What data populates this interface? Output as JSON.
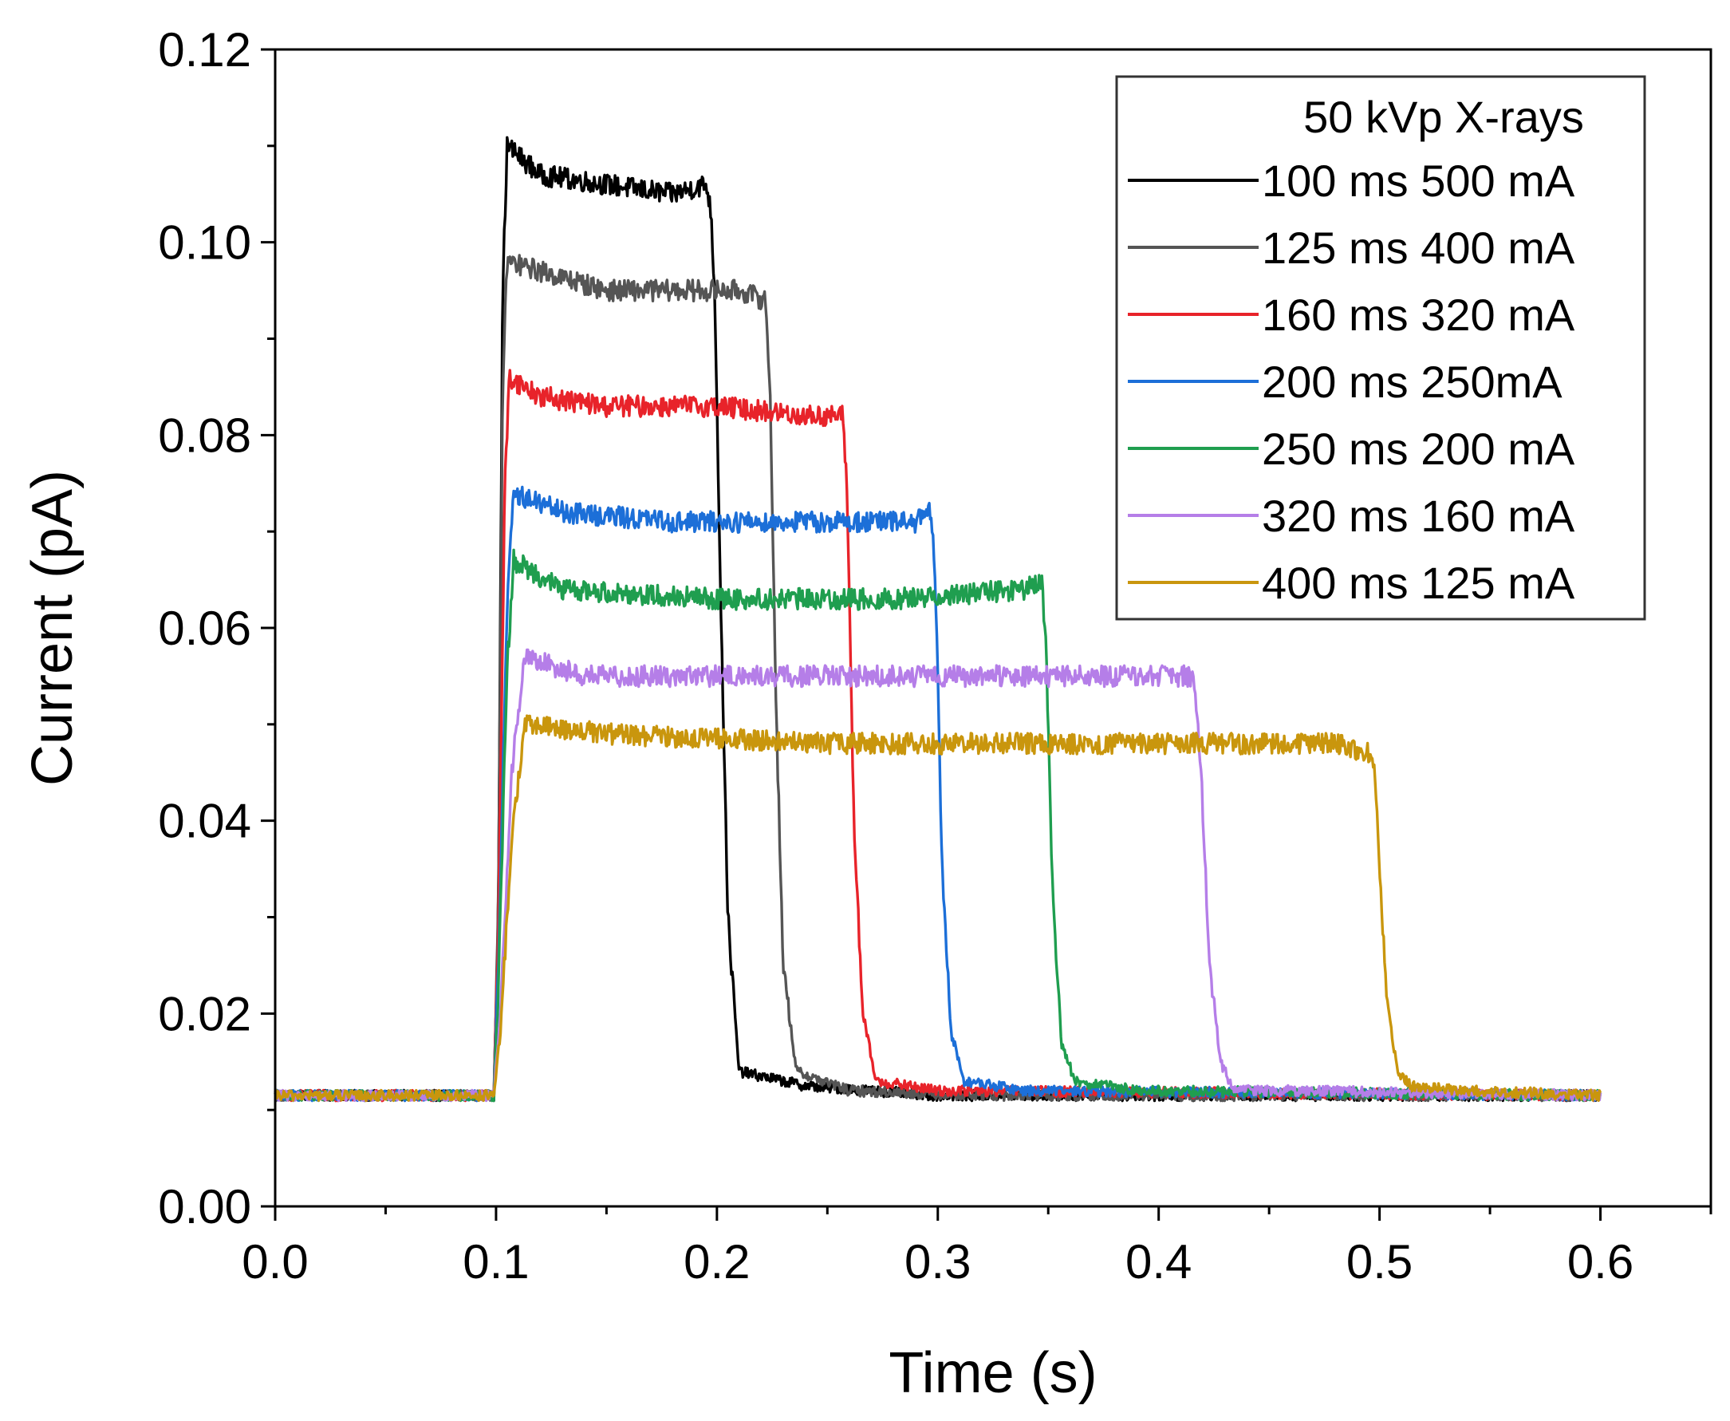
{
  "chart_data": {
    "type": "line",
    "title": "",
    "xlabel": "Time (s)",
    "ylabel": "Current (pA)",
    "xlim": [
      0.0,
      0.65
    ],
    "ylim": [
      0.0,
      0.12
    ],
    "xticks": [
      0.0,
      0.1,
      0.2,
      0.3,
      0.4,
      0.5,
      0.6
    ],
    "xtick_labels": [
      "0.0",
      "0.1",
      "0.2",
      "0.3",
      "0.4",
      "0.5",
      "0.6"
    ],
    "yticks": [
      0.0,
      0.02,
      0.04,
      0.06,
      0.08,
      0.1,
      0.12
    ],
    "ytick_labels": [
      "0.00",
      "0.02",
      "0.04",
      "0.06",
      "0.08",
      "0.10",
      "0.12"
    ],
    "grid": false,
    "legend": {
      "title": "50 kVp X-rays",
      "position": "top-right"
    },
    "series": [
      {
        "name": "100 ms 500 mA",
        "color": "#000000",
        "x": [
          0.0,
          0.099,
          0.101,
          0.103,
          0.105,
          0.12,
          0.15,
          0.18,
          0.195,
          0.197,
          0.199,
          0.202,
          0.205,
          0.21,
          0.24,
          0.3,
          0.6
        ],
        "y": [
          0.0115,
          0.0115,
          0.03,
          0.095,
          0.11,
          0.107,
          0.106,
          0.105,
          0.106,
          0.104,
          0.095,
          0.06,
          0.03,
          0.014,
          0.0125,
          0.0115,
          0.0115
        ]
      },
      {
        "name": "125 ms 400 mA",
        "color": "#555555",
        "x": [
          0.0,
          0.099,
          0.101,
          0.103,
          0.105,
          0.12,
          0.15,
          0.18,
          0.21,
          0.222,
          0.224,
          0.227,
          0.23,
          0.236,
          0.26,
          0.32,
          0.6
        ],
        "y": [
          0.0115,
          0.0115,
          0.03,
          0.085,
          0.098,
          0.097,
          0.095,
          0.095,
          0.095,
          0.094,
          0.085,
          0.05,
          0.025,
          0.014,
          0.012,
          0.0115,
          0.0115
        ]
      },
      {
        "name": "160 ms 320 mA",
        "color": "#e8232a",
        "x": [
          0.0,
          0.099,
          0.101,
          0.104,
          0.106,
          0.12,
          0.15,
          0.2,
          0.24,
          0.257,
          0.259,
          0.262,
          0.266,
          0.272,
          0.3,
          0.6
        ],
        "y": [
          0.0115,
          0.0115,
          0.028,
          0.075,
          0.086,
          0.084,
          0.083,
          0.083,
          0.082,
          0.082,
          0.074,
          0.04,
          0.02,
          0.013,
          0.012,
          0.0115
        ]
      },
      {
        "name": "200 ms 250mA",
        "color": "#1c6fd8",
        "x": [
          0.0,
          0.099,
          0.101,
          0.105,
          0.108,
          0.13,
          0.18,
          0.24,
          0.29,
          0.297,
          0.299,
          0.302,
          0.306,
          0.312,
          0.34,
          0.6
        ],
        "y": [
          0.0115,
          0.0115,
          0.025,
          0.062,
          0.074,
          0.072,
          0.071,
          0.071,
          0.071,
          0.072,
          0.064,
          0.035,
          0.018,
          0.013,
          0.012,
          0.0115
        ]
      },
      {
        "name": "250 ms 200 mA",
        "color": "#1f9e4f",
        "x": [
          0.0,
          0.099,
          0.101,
          0.105,
          0.108,
          0.13,
          0.2,
          0.28,
          0.34,
          0.347,
          0.349,
          0.352,
          0.356,
          0.362,
          0.39,
          0.6
        ],
        "y": [
          0.0115,
          0.0115,
          0.022,
          0.056,
          0.067,
          0.064,
          0.063,
          0.063,
          0.064,
          0.065,
          0.058,
          0.032,
          0.017,
          0.013,
          0.012,
          0.0115
        ]
      },
      {
        "name": "320 ms 160 mA",
        "color": "#b57ee8",
        "x": [
          0.0,
          0.099,
          0.102,
          0.107,
          0.113,
          0.14,
          0.22,
          0.32,
          0.4,
          0.416,
          0.419,
          0.423,
          0.428,
          0.434,
          0.46,
          0.6
        ],
        "y": [
          0.0115,
          0.0115,
          0.02,
          0.045,
          0.057,
          0.055,
          0.055,
          0.055,
          0.055,
          0.055,
          0.046,
          0.025,
          0.015,
          0.012,
          0.012,
          0.0115
        ]
      },
      {
        "name": "400 ms 125 mA",
        "color": "#c9960d",
        "x": [
          0.0,
          0.099,
          0.102,
          0.107,
          0.113,
          0.15,
          0.25,
          0.38,
          0.48,
          0.497,
          0.499,
          0.503,
          0.508,
          0.514,
          0.54,
          0.6
        ],
        "y": [
          0.0115,
          0.0115,
          0.018,
          0.038,
          0.05,
          0.049,
          0.048,
          0.048,
          0.048,
          0.047,
          0.04,
          0.022,
          0.014,
          0.0125,
          0.012,
          0.0115
        ]
      }
    ]
  }
}
